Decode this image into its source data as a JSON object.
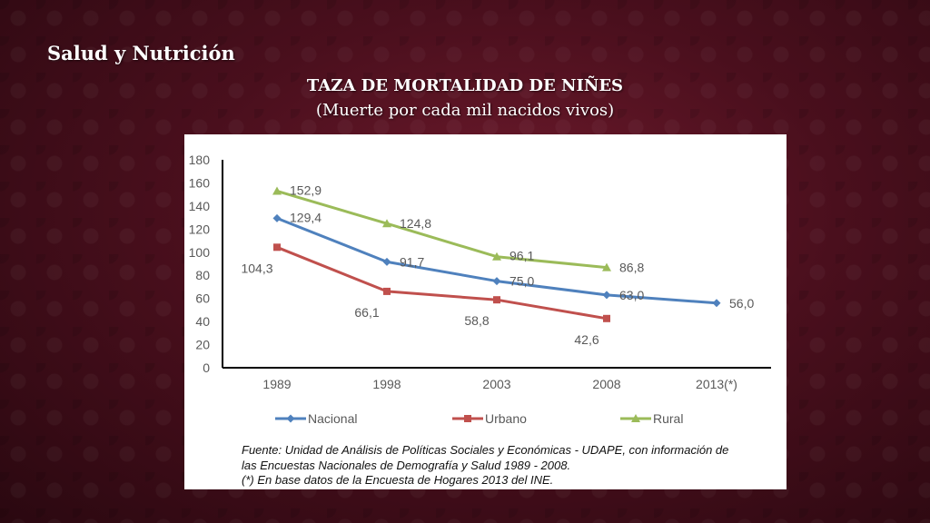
{
  "slide": {
    "section_title": "Salud y Nutrición",
    "title": "TAZA DE MORTALIDAD DE NIÑES",
    "subtitle": "(Muerte por cada mil nacidos vivos)"
  },
  "chart_data": {
    "type": "line",
    "categories": [
      "1989",
      "1998",
      "2003",
      "2008",
      "2013(*)"
    ],
    "y_ticks": [
      "0",
      "20",
      "40",
      "60",
      "80",
      "100",
      "120",
      "140",
      "160",
      "180"
    ],
    "ylim": [
      0,
      180
    ],
    "grid": false,
    "legend_position": "bottom",
    "series": [
      {
        "name": "Nacional",
        "color": "#4f81bd",
        "marker": "diamond",
        "values": [
          129.4,
          91.7,
          75.0,
          63.0,
          56.0
        ],
        "labels": [
          "129,4",
          "91,7",
          "75,0",
          "63,0",
          "56,0"
        ]
      },
      {
        "name": "Urbano",
        "color": "#c0504d",
        "marker": "square",
        "values": [
          104.3,
          66.1,
          58.8,
          42.6,
          null
        ],
        "labels": [
          "104,3",
          "66,1",
          "58,8",
          "42,6",
          null
        ]
      },
      {
        "name": "Rural",
        "color": "#9bbb59",
        "marker": "triangle",
        "values": [
          152.9,
          124.8,
          96.1,
          86.8,
          null
        ],
        "labels": [
          "152,9",
          "124,8",
          "96,1",
          "86,8",
          null
        ]
      }
    ]
  },
  "source": {
    "line1": "Fuente: Unidad de Análisis de Políticas Sociales y Económicas - UDAPE, con información de",
    "line2": "las Encuestas Nacionales de Demografía y Salud 1989 - 2008.",
    "line3": "(*) En base datos de la Encuesta de Hogares 2013 del INE."
  }
}
